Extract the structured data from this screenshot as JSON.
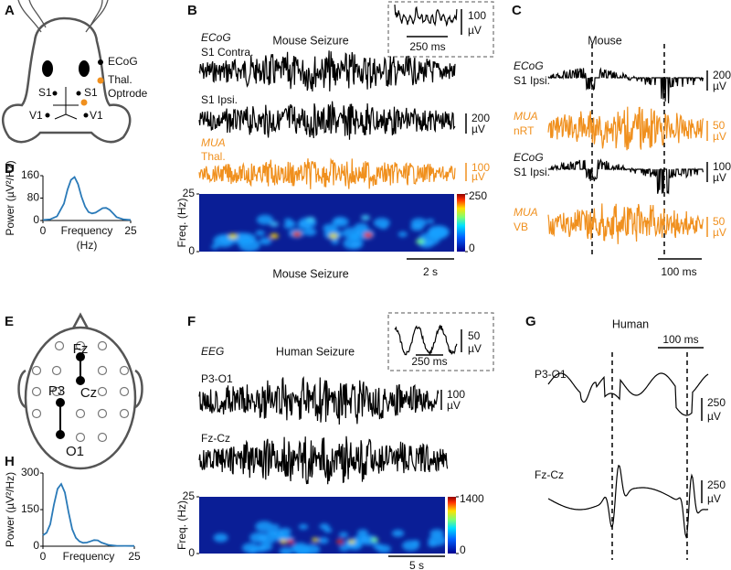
{
  "A": {
    "label": "A",
    "legend": [
      "ECoG",
      "Thal.",
      "Optrode"
    ],
    "sites": [
      "S1",
      "S1",
      "V1",
      "V1"
    ]
  },
  "B": {
    "label": "B",
    "title": "Mouse Seizure",
    "caption": "Mouse Seizure",
    "traces": [
      {
        "kind": "ECoG",
        "site": "S1 Contra."
      },
      {
        "site": "S1 Ipsi.",
        "scale": [
          "200",
          "µV"
        ]
      },
      {
        "kind": "MUA",
        "site": "Thal.",
        "scale": [
          "100",
          "µV"
        ]
      }
    ],
    "inset": {
      "scale": [
        "100",
        "µV"
      ],
      "time": "250 ms"
    },
    "spectrogram": {
      "ylabel": "Freq. (Hz)",
      "yticks": [
        0,
        25
      ],
      "colorbar_ticks": [
        0,
        250
      ],
      "time": "2 s"
    }
  },
  "C": {
    "label": "C",
    "title": "Mouse",
    "traces": [
      {
        "kind": "ECoG",
        "site": "S1 Ipsi.",
        "scale": [
          "200",
          "µV"
        ]
      },
      {
        "kind": "MUA",
        "site": "nRT",
        "scale": [
          "50",
          "µV"
        ]
      },
      {
        "kind": "ECoG",
        "site": "S1 Ipsi.",
        "scale": [
          "100",
          "µV"
        ]
      },
      {
        "kind": "MUA",
        "site": "VB",
        "scale": [
          "50",
          "µV"
        ]
      }
    ],
    "time": "100 ms"
  },
  "D": {
    "label": "D",
    "ylabel": "Power (µV²/Hz)",
    "xlabel": [
      "Frequency",
      "(Hz)"
    ],
    "xlim": [
      0,
      25
    ],
    "ylim": [
      0,
      160
    ],
    "xticks": [
      0,
      25
    ],
    "yticks": [
      0,
      80,
      160
    ],
    "x": [
      0,
      2,
      4,
      6,
      7,
      8,
      9,
      10,
      11,
      12,
      13,
      14,
      15,
      16,
      17,
      18,
      19,
      20,
      21,
      23,
      25
    ],
    "y": [
      2,
      4,
      15,
      60,
      110,
      145,
      155,
      130,
      85,
      50,
      30,
      25,
      28,
      36,
      44,
      45,
      38,
      25,
      12,
      4,
      2
    ],
    "color": "#2a7ab8"
  },
  "E": {
    "label": "E",
    "electrodes": [
      "Fz",
      "Cz",
      "P3",
      "O1"
    ]
  },
  "F": {
    "label": "F",
    "kind": "EEG",
    "title": "Human Seizure",
    "traces": [
      {
        "site": "P3-O1",
        "scale": [
          "100",
          "µV"
        ]
      },
      {
        "site": "Fz-Cz"
      }
    ],
    "inset": {
      "scale": [
        "50",
        "µV"
      ],
      "time": "250 ms"
    },
    "spectrogram": {
      "ylabel": "Freq. (Hz)",
      "yticks": [
        0,
        25
      ],
      "colorbar_ticks": [
        0,
        1400
      ],
      "time": "5 s"
    }
  },
  "G": {
    "label": "G",
    "title": "Human",
    "time": "100 ms",
    "traces": [
      {
        "site": "P3-O1",
        "scale": [
          "250",
          "µV"
        ]
      },
      {
        "site": "Fz-Cz",
        "scale": [
          "250",
          "µV"
        ]
      }
    ]
  },
  "H": {
    "label": "H",
    "ylabel": "Power (µV²/Hz)",
    "xlabel": [
      "Frequency"
    ],
    "xlim": [
      0,
      25
    ],
    "ylim": [
      0,
      300
    ],
    "xticks": [
      0,
      25
    ],
    "yticks": [
      0,
      150,
      300
    ],
    "x": [
      0,
      1,
      2,
      3,
      4,
      5,
      6,
      7,
      8,
      9,
      10,
      11,
      12,
      13,
      14,
      15,
      16,
      18,
      20,
      25
    ],
    "y": [
      45,
      55,
      90,
      170,
      235,
      255,
      220,
      140,
      70,
      35,
      20,
      14,
      15,
      20,
      25,
      24,
      15,
      5,
      2,
      1
    ],
    "color": "#2a7ab8"
  }
}
